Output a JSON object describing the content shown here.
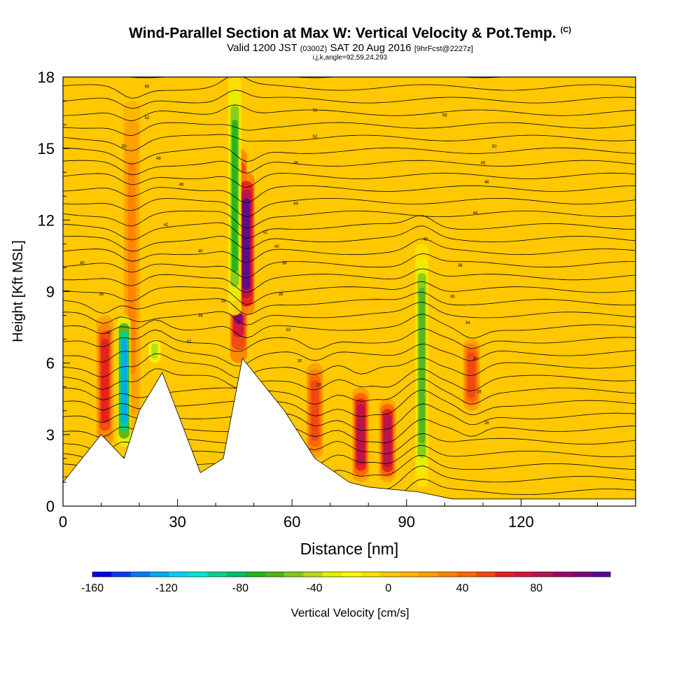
{
  "header": {
    "title": "Wind-Parallel Section at Max W: Vertical Velocity & Pot.Temp.",
    "corner_mark": "(C)",
    "valid_prefix": "Valid 1200 JST",
    "valid_z": "(0300Z)",
    "valid_date": "SAT 20 Aug 2016",
    "forecast": "[9hrFcst@2227z]",
    "indices": "i,j,k,angle=92,59,24,293"
  },
  "chart_data": {
    "type": "heatmap",
    "xlabel": "Distance [nm]",
    "ylabel": "Height [Kft MSL]",
    "xlim": [
      0,
      150
    ],
    "ylim": [
      0,
      18
    ],
    "xticks": [
      0,
      30,
      60,
      90,
      120
    ],
    "yticks": [
      0,
      3,
      6,
      9,
      12,
      15,
      18
    ],
    "colorbar": {
      "label": "Vertical Velocity [cm/s]",
      "min": -160,
      "max": 110,
      "step": 10,
      "tick_values": [
        -160,
        -120,
        -80,
        -40,
        0,
        40,
        80
      ],
      "tick_labels": [
        "-160",
        "-120",
        "-80",
        "-40",
        "0",
        "40",
        "80"
      ],
      "colors": [
        "#0000e6",
        "#0a3cf0",
        "#0a78f0",
        "#00aaf0",
        "#00d2f0",
        "#00e6d2",
        "#00d296",
        "#00be64",
        "#1eb41e",
        "#50b41e",
        "#82c81e",
        "#b4dc1e",
        "#e6f000",
        "#fffa00",
        "#ffe100",
        "#ffc800",
        "#ffb400",
        "#ffa000",
        "#ff8200",
        "#ff6400",
        "#f04614",
        "#e61e1e",
        "#d2143c",
        "#b41450",
        "#960a64",
        "#780a78",
        "#5a0a8c"
      ]
    },
    "terrain_kft": [
      [
        0,
        1
      ],
      [
        10,
        3
      ],
      [
        16,
        2
      ],
      [
        20,
        4
      ],
      [
        26,
        5.6
      ],
      [
        36,
        1.4
      ],
      [
        42,
        2
      ],
      [
        47,
        6.2
      ],
      [
        58,
        4
      ],
      [
        66,
        2
      ],
      [
        75,
        1
      ],
      [
        80,
        0.8
      ],
      [
        93,
        0.6
      ],
      [
        102,
        0.3
      ],
      [
        150,
        0.3
      ]
    ],
    "updraft_columns": [
      {
        "x": 11,
        "bottom": 2.5,
        "top": 8,
        "w": 55
      },
      {
        "x": 18,
        "bottom": 3,
        "top": 17,
        "w": 20
      },
      {
        "x": 46,
        "bottom": 6,
        "top": 15,
        "w": 90
      },
      {
        "x": 48,
        "bottom": 8,
        "top": 14,
        "w": 100
      },
      {
        "x": 66,
        "bottom": 2,
        "top": 6,
        "w": 40
      },
      {
        "x": 78,
        "bottom": 1,
        "top": 5,
        "w": 75
      },
      {
        "x": 85,
        "bottom": 1,
        "top": 4.5,
        "w": 70
      },
      {
        "x": 107,
        "bottom": 4,
        "top": 7,
        "w": 45
      }
    ],
    "downdraft_columns": [
      {
        "x": 16,
        "bottom": 2.5,
        "top": 8,
        "w": -130
      },
      {
        "x": 45,
        "bottom": 8,
        "top": 18,
        "w": -75
      },
      {
        "x": 94,
        "bottom": 0.8,
        "top": 11,
        "w": -70
      },
      {
        "x": 24,
        "bottom": 6,
        "top": 7,
        "w": -45
      }
    ],
    "theta_contour_labels": [
      {
        "x": 22,
        "y": 17.6,
        "text": "60"
      },
      {
        "x": 66,
        "y": 16.6,
        "text": "56"
      },
      {
        "x": 100,
        "y": 16.4,
        "text": "56"
      },
      {
        "x": 22,
        "y": 16.3,
        "text": "52"
      },
      {
        "x": 66,
        "y": 15.5,
        "text": "52"
      },
      {
        "x": 113,
        "y": 15.1,
        "text": "50"
      },
      {
        "x": 16,
        "y": 15.1,
        "text": "50"
      },
      {
        "x": 25,
        "y": 14.6,
        "text": "48"
      },
      {
        "x": 61,
        "y": 14.4,
        "text": "48"
      },
      {
        "x": 110,
        "y": 14.4,
        "text": "48"
      },
      {
        "x": 31,
        "y": 13.5,
        "text": "46"
      },
      {
        "x": 111,
        "y": 13.6,
        "text": "46"
      },
      {
        "x": 61,
        "y": 12.7,
        "text": "44"
      },
      {
        "x": 108,
        "y": 12.3,
        "text": "44"
      },
      {
        "x": 27,
        "y": 11.8,
        "text": "42"
      },
      {
        "x": 53,
        "y": 11.5,
        "text": "42"
      },
      {
        "x": 95,
        "y": 11.2,
        "text": "42"
      },
      {
        "x": 56,
        "y": 10.9,
        "text": "40"
      },
      {
        "x": 36,
        "y": 10.7,
        "text": "40"
      },
      {
        "x": 5,
        "y": 10.2,
        "text": "40"
      },
      {
        "x": 58,
        "y": 10.2,
        "text": "38"
      },
      {
        "x": 104,
        "y": 10.1,
        "text": "38"
      },
      {
        "x": 10,
        "y": 8.9,
        "text": "36"
      },
      {
        "x": 57,
        "y": 8.9,
        "text": "36"
      },
      {
        "x": 102,
        "y": 8.8,
        "text": "36"
      },
      {
        "x": 42,
        "y": 8.6,
        "text": "34"
      },
      {
        "x": 36,
        "y": 8.0,
        "text": "34"
      },
      {
        "x": 106,
        "y": 7.7,
        "text": "34"
      },
      {
        "x": 12,
        "y": 7.3,
        "text": "32"
      },
      {
        "x": 59,
        "y": 7.4,
        "text": "32"
      },
      {
        "x": 33,
        "y": 6.9,
        "text": "32"
      },
      {
        "x": 108,
        "y": 6.2,
        "text": "30"
      },
      {
        "x": 62,
        "y": 6.1,
        "text": "30"
      },
      {
        "x": 67,
        "y": 5.1,
        "text": "28"
      },
      {
        "x": 109,
        "y": 4.8,
        "text": "28"
      },
      {
        "x": 111,
        "y": 3.5,
        "text": "26"
      }
    ]
  }
}
